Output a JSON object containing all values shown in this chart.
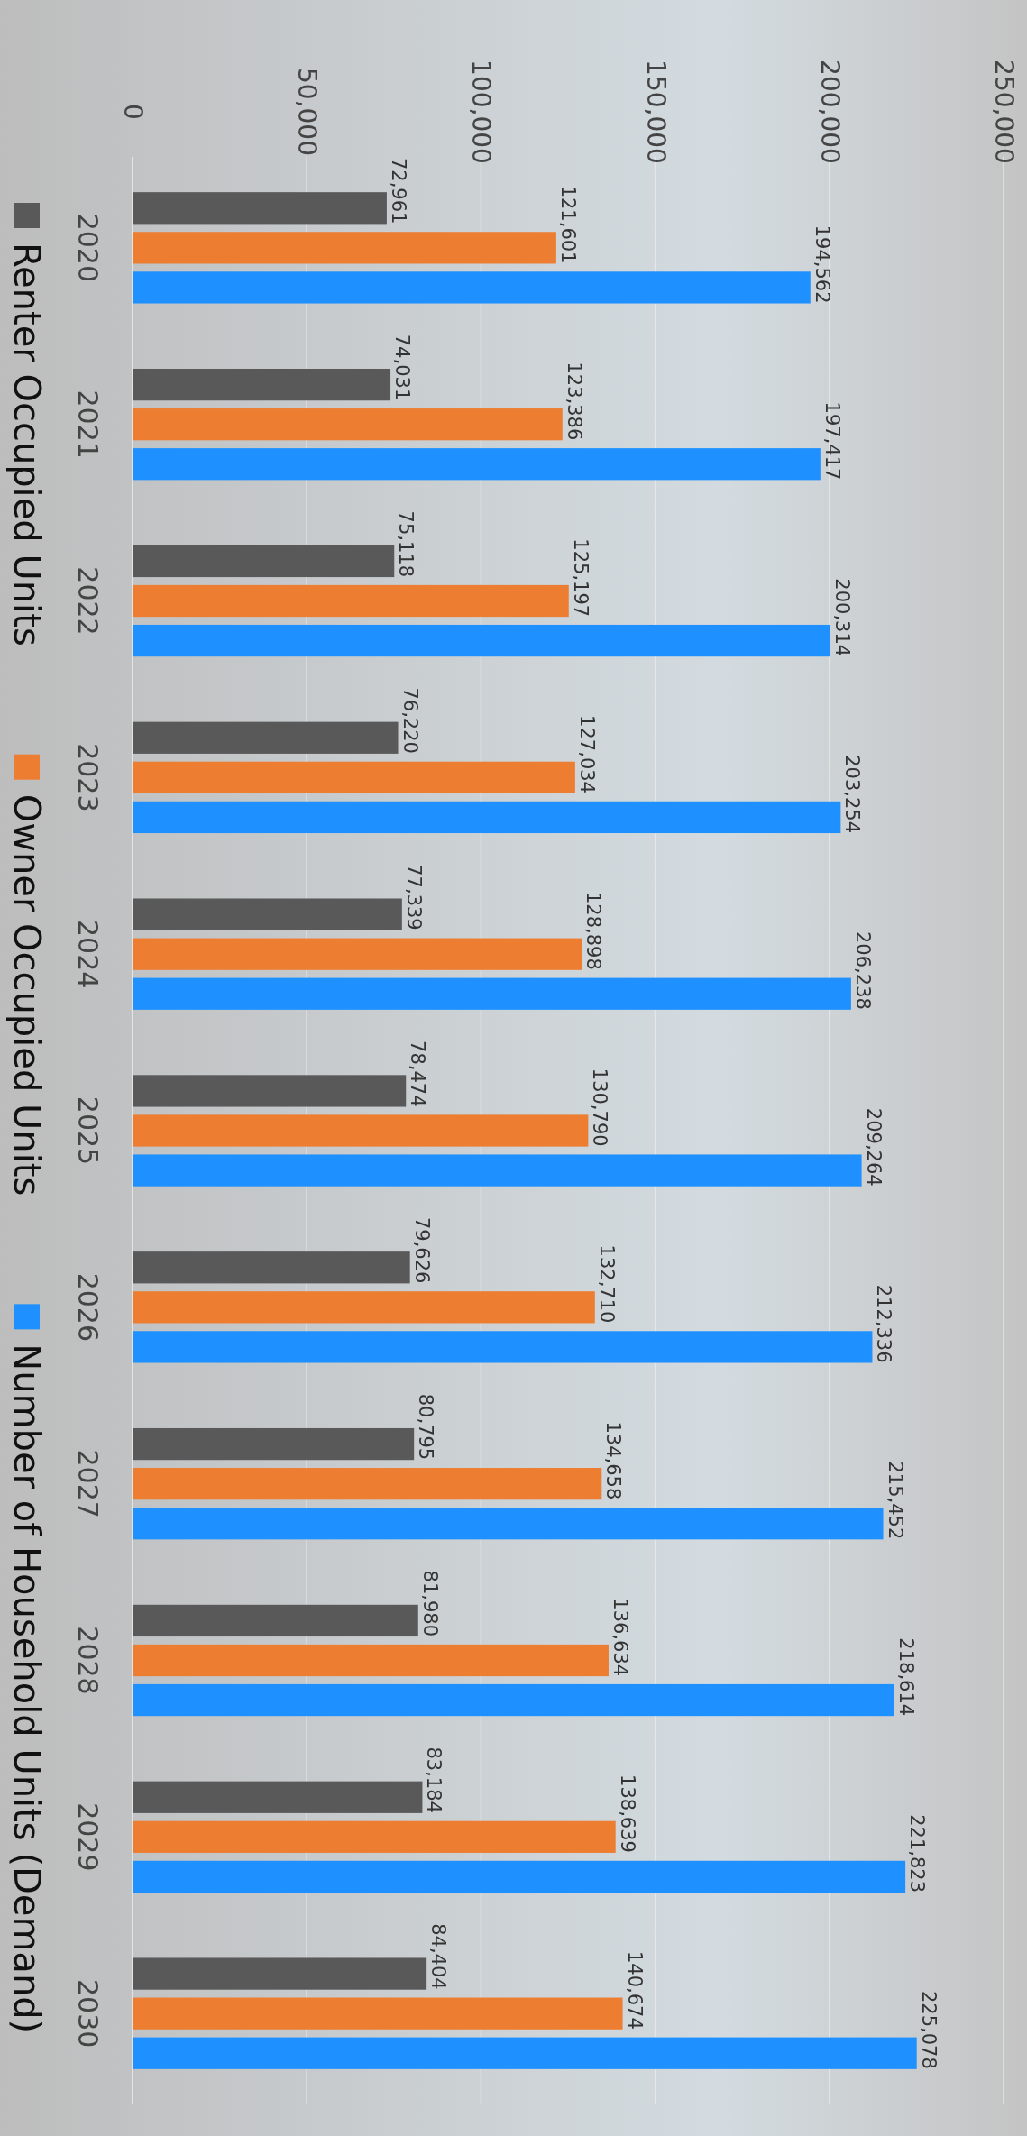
{
  "chart_data": {
    "type": "bar",
    "orientation": "horizontal",
    "categories": [
      "2020",
      "2021",
      "2022",
      "2023",
      "2024",
      "2025",
      "2026",
      "2027",
      "2028",
      "2029",
      "2030"
    ],
    "series": [
      {
        "name": "Renter Occupied Units",
        "color": "#595959",
        "values": [
          72961,
          74031,
          75118,
          76220,
          77339,
          78474,
          79626,
          80795,
          81980,
          83184,
          84404
        ],
        "value_labels": [
          "72,961",
          "74,031",
          "75,118",
          "76,220",
          "77,339",
          "78,474",
          "79,626",
          "80,795",
          "81,980",
          "83,184",
          "84,404"
        ]
      },
      {
        "name": "Owner Occupied Units",
        "color": "#ed7d31",
        "values": [
          121601,
          123386,
          125197,
          127034,
          128898,
          130790,
          132710,
          134658,
          136634,
          138639,
          140674
        ],
        "value_labels": [
          "121,601",
          "123,386",
          "125,197",
          "127,034",
          "128,898",
          "130,790",
          "132,710",
          "134,658",
          "136,634",
          "138,639",
          "140,674"
        ]
      },
      {
        "name": "Number of Household Units (Demand)",
        "color": "#1e90ff",
        "values": [
          194562,
          197417,
          200314,
          203254,
          206238,
          209264,
          212336,
          215452,
          218614,
          221823,
          225078
        ],
        "value_labels": [
          "194,562",
          "197,417",
          "200,314",
          "203,254",
          "206,238",
          "209,264",
          "212,336",
          "215,452",
          "218,614",
          "221,823",
          "225,078"
        ]
      }
    ],
    "xlim": [
      0,
      250000
    ],
    "xticks": [
      {
        "value": 0,
        "label": "0"
      },
      {
        "value": 50000,
        "label": "50,000"
      },
      {
        "value": 100000,
        "label": "100,000"
      },
      {
        "value": 150000,
        "label": "150,000"
      },
      {
        "value": 200000,
        "label": "200,000"
      },
      {
        "value": 250000,
        "label": "250,000"
      }
    ],
    "grid": "x",
    "legend": "left"
  }
}
